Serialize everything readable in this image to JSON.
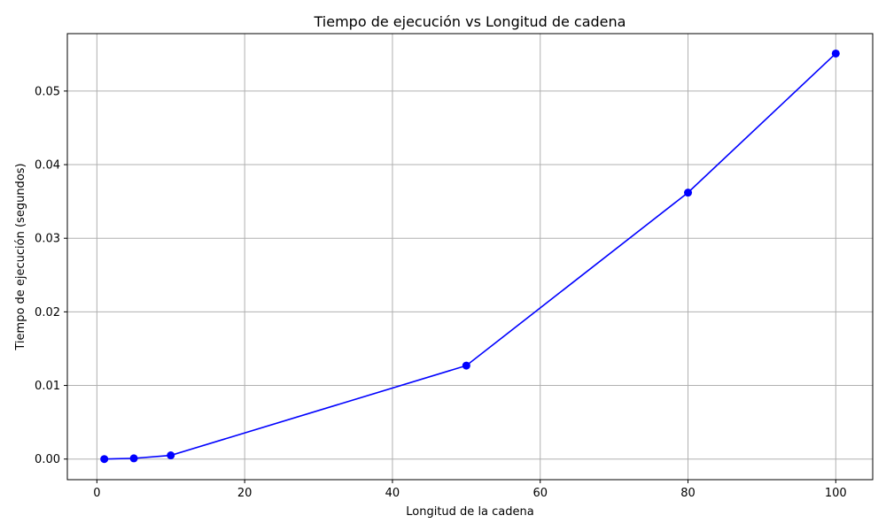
{
  "chart_data": {
    "type": "line",
    "title": "Tiempo de ejecución vs Longitud de cadena",
    "xlabel": "Longitud de la cadena",
    "ylabel": "Tiempo de ejecución (segundos)",
    "x": [
      1,
      5,
      10,
      50,
      80,
      100
    ],
    "series": [
      {
        "values": [
          0.0,
          0.0001,
          0.0005,
          0.0127,
          0.0362,
          0.0551
        ],
        "color": "#0000ff",
        "marker": "circle"
      }
    ],
    "xlim": [
      -4,
      105
    ],
    "ylim": [
      -0.0028,
      0.0578
    ],
    "xticks": [
      0,
      20,
      40,
      60,
      80,
      100
    ],
    "xtick_labels": [
      "0",
      "20",
      "40",
      "60",
      "80",
      "100"
    ],
    "yticks": [
      0.0,
      0.01,
      0.02,
      0.03,
      0.04,
      0.05
    ],
    "ytick_labels": [
      "0.00",
      "0.01",
      "0.02",
      "0.03",
      "0.04",
      "0.05"
    ],
    "grid": true,
    "colors": {
      "grid": "#b0b0b0",
      "axes": "#000000"
    }
  }
}
